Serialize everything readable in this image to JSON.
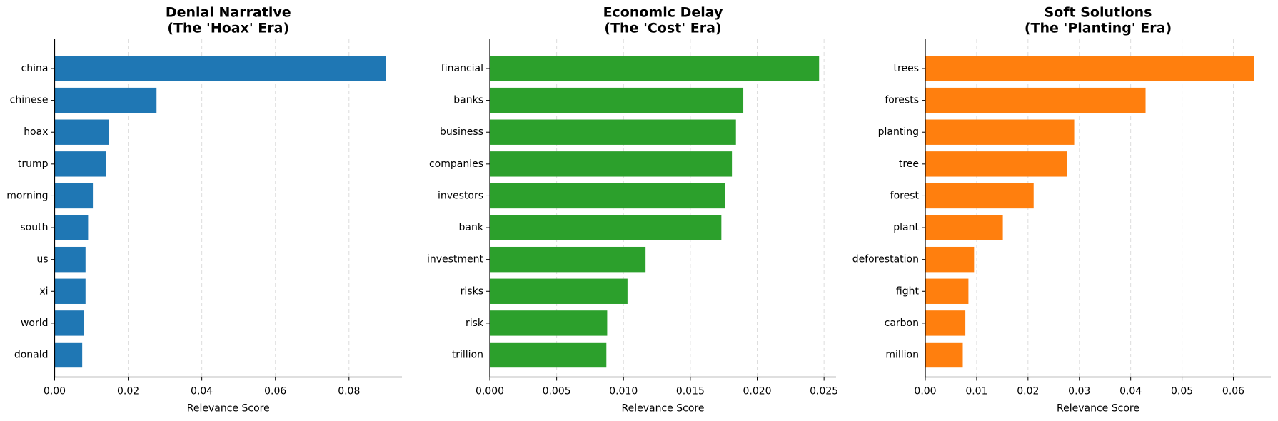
{
  "chart_data": [
    {
      "type": "barh",
      "title": [
        "Denial Narrative",
        "(The 'Hoax' Era)"
      ],
      "xlabel": "Relevance Score",
      "categories": [
        "china",
        "chinese",
        "hoax",
        "trump",
        "morning",
        "south",
        "us",
        "xi",
        "world",
        "donald"
      ],
      "values": [
        0.09,
        0.0277,
        0.0148,
        0.014,
        0.0104,
        0.0091,
        0.0084,
        0.0084,
        0.008,
        0.0075
      ],
      "color": "#1f77b4",
      "xlim": [
        0,
        0.0944
      ],
      "xticks": [
        {
          "value": 0,
          "label": "0.00"
        },
        {
          "value": 0.02,
          "label": "0.02"
        },
        {
          "value": 0.04,
          "label": "0.04"
        },
        {
          "value": 0.06,
          "label": "0.06"
        },
        {
          "value": 0.08,
          "label": "0.08"
        }
      ],
      "grid": true
    },
    {
      "type": "barh",
      "title": [
        "Economic Delay",
        "(The 'Cost' Era)"
      ],
      "xlabel": "Relevance Score",
      "categories": [
        "financial",
        "banks",
        "business",
        "companies",
        "investors",
        "bank",
        "investment",
        "risks",
        "risk",
        "trillion"
      ],
      "values": [
        0.02463,
        0.01896,
        0.01841,
        0.01811,
        0.01762,
        0.01732,
        0.01165,
        0.0103,
        0.00878,
        0.00872
      ],
      "color": "#2ca02c",
      "xlim": [
        0,
        0.0259
      ],
      "xticks": [
        {
          "value": 0,
          "label": "0.000"
        },
        {
          "value": 0.005,
          "label": "0.005"
        },
        {
          "value": 0.01,
          "label": "0.010"
        },
        {
          "value": 0.015,
          "label": "0.015"
        },
        {
          "value": 0.02,
          "label": "0.020"
        },
        {
          "value": 0.025,
          "label": "0.025"
        }
      ],
      "grid": true
    },
    {
      "type": "barh",
      "title": [
        "Soft Solutions",
        "(The 'Planting' Era)"
      ],
      "xlabel": "Relevance Score",
      "categories": [
        "trees",
        "forests",
        "planting",
        "tree",
        "forest",
        "plant",
        "deforestation",
        "fight",
        "carbon",
        "million"
      ],
      "values": [
        0.0641,
        0.0429,
        0.029,
        0.0276,
        0.0211,
        0.0151,
        0.0095,
        0.0084,
        0.0078,
        0.0073
      ],
      "color": "#ff7f0e",
      "xlim": [
        0,
        0.0673
      ],
      "xticks": [
        {
          "value": 0,
          "label": "0.00"
        },
        {
          "value": 0.01,
          "label": "0.01"
        },
        {
          "value": 0.02,
          "label": "0.02"
        },
        {
          "value": 0.03,
          "label": "0.03"
        },
        {
          "value": 0.04,
          "label": "0.04"
        },
        {
          "value": 0.05,
          "label": "0.05"
        },
        {
          "value": 0.06,
          "label": "0.06"
        }
      ],
      "grid": true
    }
  ]
}
